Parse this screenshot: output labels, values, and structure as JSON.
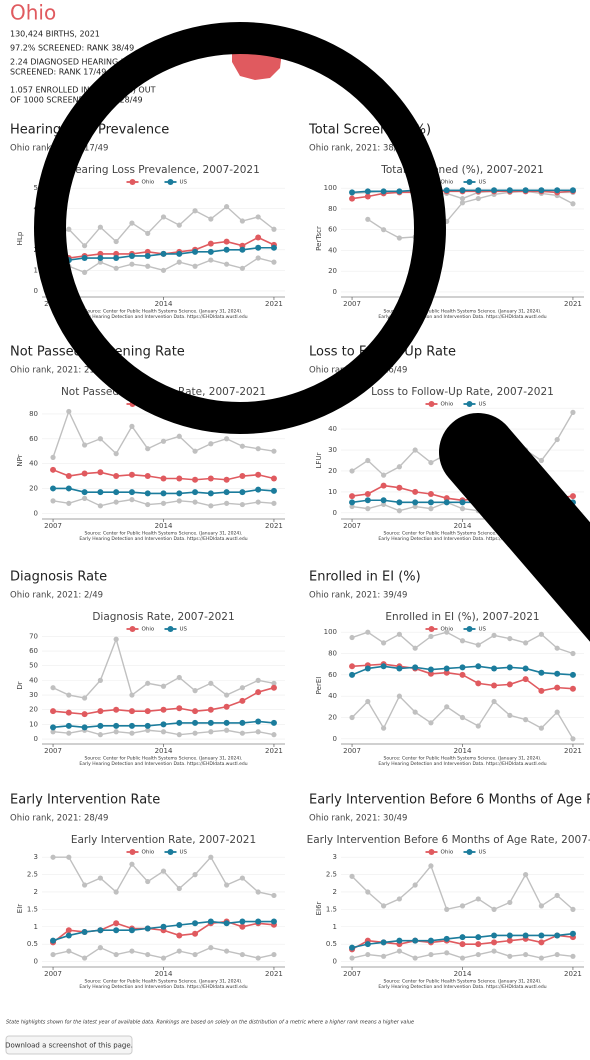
{
  "page": {
    "title": "Ohio",
    "stats": [
      "130,424 BIRTHS, 2021",
      "97.2% SCREENED: RANK 38/49",
      "2.24 DIAGNOSED HEARING LOSS PER 1000",
      "SCREENED: RANK 17/49",
      "1.057 ENROLLED IN EI (PART C) OUT",
      "OF 1000 SCREENED: RANK 28/49"
    ]
  },
  "footer": {
    "note": "State highlights shown for the latest year of available data. Rankings are based on solely on the distribution of a metric where a higher rank means a higher value",
    "button": "Download a screenshot of this page."
  },
  "chart_data": [
    {
      "type": "line",
      "section_title": "Hearing Loss Prevalence",
      "subtitle": "Ohio rank, 2021: 17/49",
      "title": "Hearing Loss Prevalence, 2007-2021",
      "ylabel": "HLp",
      "source": [
        "Source: Center for Public Health Systems Science. (January 31, 2024).",
        "Early Hearing Detection and Intervention Data. https://EHDIdata.wustl.edu"
      ],
      "x": [
        2007,
        2008,
        2009,
        2010,
        2011,
        2012,
        2013,
        2014,
        2015,
        2016,
        2017,
        2018,
        2019,
        2020,
        2021
      ],
      "xticks": [
        2007,
        2014,
        2021
      ],
      "xlim": [
        2006.3,
        2021.7
      ],
      "ylim": [
        -0.2,
        5.3
      ],
      "yticks": [
        0,
        1,
        2,
        3,
        4,
        5
      ],
      "series": [
        {
          "color": "#c0c0c0",
          "values": [
            2.6,
            3.0,
            2.2,
            3.1,
            2.4,
            3.3,
            2.8,
            3.6,
            3.2,
            3.9,
            3.5,
            4.1,
            3.4,
            3.6,
            3.0
          ]
        },
        {
          "color": "#c0c0c0",
          "values": [
            1.0,
            1.2,
            0.9,
            1.4,
            1.1,
            1.3,
            1.2,
            1.0,
            1.4,
            1.2,
            1.5,
            1.3,
            1.1,
            1.6,
            1.4
          ]
        },
        {
          "name": "Ohio",
          "color": "#e05a5f",
          "values": [
            1.5,
            1.6,
            1.7,
            1.8,
            1.8,
            1.8,
            1.9,
            1.8,
            1.9,
            2.0,
            2.3,
            2.4,
            2.2,
            2.6,
            2.24
          ]
        },
        {
          "name": "US",
          "color": "#1b7c9c",
          "values": [
            1.5,
            1.5,
            1.6,
            1.6,
            1.6,
            1.7,
            1.7,
            1.8,
            1.8,
            1.9,
            1.9,
            2.0,
            2.0,
            2.1,
            2.1
          ]
        }
      ]
    },
    {
      "type": "line",
      "section_title": "Total Screened (%)",
      "subtitle": "Ohio rank, 2021: 38/49",
      "title": "Total Screened (%), 2007-2021",
      "ylabel": "PerTscr",
      "source": [
        "Source: Center for Public Health Systems Science. (January 31, 2024).",
        "Early Hearing Detection and Intervention Data. https://EHDIdata.wustl.edu"
      ],
      "x": [
        2007,
        2008,
        2009,
        2010,
        2011,
        2012,
        2013,
        2014,
        2015,
        2016,
        2017,
        2018,
        2019,
        2020,
        2021
      ],
      "xticks": [
        2007,
        2021
      ],
      "xlim": [
        2006.3,
        2021.7
      ],
      "ylim": [
        -3,
        106
      ],
      "yticks": [
        0,
        20,
        40,
        60,
        80,
        100
      ],
      "series": [
        {
          "color": "#c0c0c0",
          "values": [
            null,
            70,
            60,
            52,
            53,
            58,
            68,
            86,
            90,
            94,
            96,
            97,
            97,
            96,
            96
          ]
        },
        {
          "color": "#c0c0c0",
          "values": [
            95,
            96,
            97,
            96,
            97,
            93,
            95,
            90,
            96,
            97,
            98,
            97,
            95,
            93,
            85
          ]
        },
        {
          "name": "Ohio",
          "color": "#e05a5f",
          "values": [
            90,
            92,
            95,
            96,
            96,
            96,
            97,
            97,
            97,
            97,
            97,
            97,
            97,
            96,
            97.2
          ]
        },
        {
          "name": "US",
          "color": "#1b7c9c",
          "values": [
            96,
            97,
            97,
            97,
            98,
            98,
            98,
            98,
            98,
            98,
            98,
            98,
            98,
            98,
            98
          ]
        }
      ]
    },
    {
      "type": "line",
      "section_title": "Not Passed Screening Rate",
      "subtitle": "Ohio rank, 2021: 21/49",
      "title": "Not Passed Screening Rate, 2007-2021",
      "ylabel": "NPr",
      "source": [
        "Source: Center for Public Health Systems Science. (January 31, 2024).",
        "Early Hearing Detection and Intervention Data. https://EHDIdata.wustl.edu"
      ],
      "x": [
        2007,
        2008,
        2009,
        2010,
        2011,
        2012,
        2013,
        2014,
        2015,
        2016,
        2017,
        2018,
        2019,
        2020,
        2021
      ],
      "xticks": [
        2007,
        2014,
        2021
      ],
      "xlim": [
        2006.3,
        2021.7
      ],
      "ylim": [
        -3,
        88
      ],
      "yticks": [
        0,
        20,
        40,
        60,
        80
      ],
      "series": [
        {
          "color": "#c0c0c0",
          "values": [
            45,
            82,
            55,
            60,
            48,
            70,
            52,
            58,
            62,
            50,
            56,
            60,
            54,
            52,
            50
          ]
        },
        {
          "color": "#c0c0c0",
          "values": [
            10,
            8,
            12,
            6,
            9,
            11,
            7,
            8,
            10,
            9,
            6,
            8,
            7,
            9,
            8
          ]
        },
        {
          "name": "Ohio",
          "color": "#e05a5f",
          "values": [
            35,
            30,
            32,
            33,
            30,
            31,
            30,
            28,
            28,
            27,
            28,
            27,
            30,
            31,
            28
          ]
        },
        {
          "name": "US",
          "color": "#1b7c9c",
          "values": [
            20,
            20,
            17,
            17,
            17,
            17,
            16,
            16,
            16,
            17,
            16,
            17,
            17,
            19,
            18
          ]
        }
      ]
    },
    {
      "type": "line",
      "section_title": "Loss to Follow-Up Rate",
      "subtitle": "Ohio rank, 2021: 16/49",
      "title": "Loss to Follow-Up Rate, 2007-2021",
      "ylabel": "LFUr",
      "source": [
        "Source: Center for Public Health Systems Science. (January 31, 2024).",
        "Early Hearing Detection and Intervention Data. https://EHDIdata.wustl.edu"
      ],
      "x": [
        2007,
        2008,
        2009,
        2010,
        2011,
        2012,
        2013,
        2014,
        2015,
        2016,
        2017,
        2018,
        2019,
        2020,
        2021
      ],
      "xticks": [
        2007,
        2014,
        2021
      ],
      "xlim": [
        2006.3,
        2021.7
      ],
      "ylim": [
        -2,
        52
      ],
      "yticks": [
        0,
        10,
        20,
        30,
        40,
        50
      ],
      "series": [
        {
          "color": "#c0c0c0",
          "values": [
            20,
            25,
            18,
            22,
            30,
            24,
            28,
            21,
            26,
            19,
            23,
            30,
            25,
            35,
            48
          ]
        },
        {
          "color": "#c0c0c0",
          "values": [
            3,
            2,
            4,
            1,
            3,
            2,
            5,
            2,
            1,
            3,
            2,
            4,
            2,
            1,
            2
          ]
        },
        {
          "name": "Ohio",
          "color": "#e05a5f",
          "values": [
            8,
            9,
            13,
            12,
            10,
            9,
            7,
            6,
            7,
            8,
            7,
            8,
            7,
            7,
            8
          ]
        },
        {
          "name": "US",
          "color": "#1b7c9c",
          "values": [
            5,
            6,
            6,
            5,
            5,
            5,
            5,
            5,
            5,
            5,
            5,
            5,
            5,
            5,
            5
          ]
        }
      ]
    },
    {
      "type": "line",
      "section_title": "Diagnosis Rate",
      "subtitle": "Ohio rank, 2021: 2/49",
      "title": "Diagnosis Rate, 2007-2021",
      "ylabel": "Dr",
      "source": [
        "Source: Center for Public Health Systems Science. (January 31, 2024).",
        "Early Hearing Detection and Intervention Data. https://EHDIdata.wustl.edu"
      ],
      "x": [
        2007,
        2008,
        2009,
        2010,
        2011,
        2012,
        2013,
        2014,
        2015,
        2016,
        2017,
        2018,
        2019,
        2020,
        2021
      ],
      "xticks": [
        2007,
        2014,
        2021
      ],
      "xlim": [
        2006.3,
        2021.7
      ],
      "ylim": [
        -2,
        75
      ],
      "yticks": [
        0,
        10,
        20,
        30,
        40,
        50,
        60,
        70
      ],
      "series": [
        {
          "color": "#c0c0c0",
          "values": [
            35,
            30,
            28,
            40,
            68,
            30,
            38,
            36,
            42,
            33,
            38,
            30,
            35,
            40,
            38
          ]
        },
        {
          "color": "#c0c0c0",
          "values": [
            5,
            4,
            6,
            3,
            5,
            4,
            6,
            5,
            3,
            4,
            5,
            6,
            4,
            5,
            3
          ]
        },
        {
          "name": "Ohio",
          "color": "#e05a5f",
          "values": [
            19,
            18,
            17,
            19,
            20,
            19,
            19,
            20,
            21,
            19,
            20,
            22,
            26,
            32,
            35
          ]
        },
        {
          "name": "US",
          "color": "#1b7c9c",
          "values": [
            8,
            9,
            8,
            9,
            9,
            9,
            9,
            10,
            11,
            11,
            11,
            11,
            11,
            12,
            11
          ]
        }
      ]
    },
    {
      "type": "line",
      "section_title": "Enrolled in EI (%)",
      "subtitle": "Ohio rank, 2021: 39/49",
      "title": "Enrolled in EI (%), 2007-2021",
      "ylabel": "PerEI",
      "source": [
        "Source: Center for Public Health Systems Science. (January 31, 2024).",
        "Early Hearing Detection and Intervention Data. https://EHDIdata.wustl.edu"
      ],
      "x": [
        2007,
        2008,
        2009,
        2010,
        2011,
        2012,
        2013,
        2014,
        2015,
        2016,
        2017,
        2018,
        2019,
        2020,
        2021
      ],
      "xticks": [
        2007,
        2014,
        2021
      ],
      "xlim": [
        2006.3,
        2021.7
      ],
      "ylim": [
        -3,
        103
      ],
      "yticks": [
        0,
        20,
        40,
        60,
        80,
        100
      ],
      "series": [
        {
          "color": "#c0c0c0",
          "values": [
            95,
            100,
            90,
            98,
            85,
            96,
            100,
            92,
            88,
            97,
            94,
            90,
            98,
            85,
            80
          ]
        },
        {
          "color": "#c0c0c0",
          "values": [
            20,
            35,
            10,
            40,
            25,
            15,
            30,
            20,
            12,
            35,
            22,
            18,
            10,
            25,
            0
          ]
        },
        {
          "name": "Ohio",
          "color": "#e05a5f",
          "values": [
            68,
            69,
            70,
            68,
            66,
            61,
            62,
            60,
            52,
            50,
            51,
            56,
            45,
            48,
            47
          ]
        },
        {
          "name": "US",
          "color": "#1b7c9c",
          "values": [
            60,
            66,
            68,
            66,
            67,
            65,
            66,
            67,
            68,
            66,
            67,
            66,
            62,
            61,
            60
          ]
        }
      ]
    },
    {
      "type": "line",
      "section_title": "Early Intervention Rate",
      "subtitle": "Ohio rank, 2021: 28/49",
      "title": "Early Intervention Rate, 2007-2021",
      "ylabel": "EIr",
      "source": [
        "Source: Center for Public Health Systems Science. (January 31, 2024).",
        "Early Hearing Detection and Intervention Data. https://EHDIdata.wustl.edu"
      ],
      "x": [
        2007,
        2008,
        2009,
        2010,
        2011,
        2012,
        2013,
        2014,
        2015,
        2016,
        2017,
        2018,
        2019,
        2020,
        2021
      ],
      "xticks": [
        2007,
        2014,
        2021
      ],
      "xlim": [
        2006.3,
        2021.7
      ],
      "ylim": [
        -0.1,
        3.15
      ],
      "yticks": [
        0,
        0.5,
        1,
        1.5,
        2,
        2.5,
        3
      ],
      "series": [
        {
          "color": "#c0c0c0",
          "values": [
            3.0,
            3.0,
            2.2,
            2.4,
            2.0,
            2.8,
            2.3,
            2.6,
            2.1,
            2.5,
            3.0,
            2.2,
            2.4,
            2.0,
            1.9
          ]
        },
        {
          "color": "#c0c0c0",
          "values": [
            0.2,
            0.3,
            0.1,
            0.4,
            0.2,
            0.3,
            0.2,
            0.1,
            0.3,
            0.2,
            0.4,
            0.3,
            0.2,
            0.1,
            0.2
          ]
        },
        {
          "name": "Ohio",
          "color": "#e05a5f",
          "values": [
            0.55,
            0.9,
            0.85,
            0.9,
            1.1,
            0.95,
            0.95,
            0.9,
            0.75,
            0.8,
            1.1,
            1.15,
            1.0,
            1.1,
            1.057
          ]
        },
        {
          "name": "US",
          "color": "#1b7c9c",
          "values": [
            0.6,
            0.75,
            0.85,
            0.9,
            0.9,
            0.9,
            0.95,
            1.0,
            1.05,
            1.1,
            1.15,
            1.1,
            1.15,
            1.15,
            1.15
          ]
        }
      ]
    },
    {
      "type": "line",
      "section_title": "Early Intervention Before 6 Months of Age Rate",
      "subtitle": "Ohio rank, 2021: 30/49",
      "title": "Early Intervention Before 6 Months of Age Rate, 2007-2021",
      "ylabel": "EI6r",
      "source": [
        "Source: Center for Public Health Systems Science. (January 31, 2024).",
        "Early Hearing Detection and Intervention Data. https://EHDIdata.wustl.edu"
      ],
      "x": [
        2007,
        2008,
        2009,
        2010,
        2011,
        2012,
        2013,
        2014,
        2015,
        2016,
        2017,
        2018,
        2019,
        2020,
        2021
      ],
      "xticks": [
        2007,
        2014,
        2021
      ],
      "xlim": [
        2006.3,
        2021.7
      ],
      "ylim": [
        -0.1,
        3.15
      ],
      "yticks": [
        0,
        0.5,
        1,
        1.5,
        2,
        2.5,
        3
      ],
      "series": [
        {
          "color": "#c0c0c0",
          "values": [
            2.45,
            2.0,
            1.6,
            1.8,
            2.2,
            2.75,
            1.5,
            1.6,
            1.8,
            1.5,
            1.7,
            2.5,
            1.6,
            1.9,
            1.5
          ]
        },
        {
          "color": "#c0c0c0",
          "values": [
            0.1,
            0.2,
            0.15,
            0.3,
            0.1,
            0.2,
            0.25,
            0.1,
            0.2,
            0.3,
            0.15,
            0.2,
            0.1,
            0.2,
            0.15
          ]
        },
        {
          "name": "Ohio",
          "color": "#e05a5f",
          "values": [
            0.35,
            0.6,
            0.55,
            0.5,
            0.6,
            0.55,
            0.6,
            0.5,
            0.5,
            0.55,
            0.6,
            0.65,
            0.55,
            0.75,
            0.7
          ]
        },
        {
          "name": "US",
          "color": "#1b7c9c",
          "values": [
            0.4,
            0.5,
            0.55,
            0.6,
            0.6,
            0.6,
            0.65,
            0.7,
            0.7,
            0.75,
            0.75,
            0.75,
            0.75,
            0.75,
            0.8
          ]
        }
      ]
    }
  ]
}
